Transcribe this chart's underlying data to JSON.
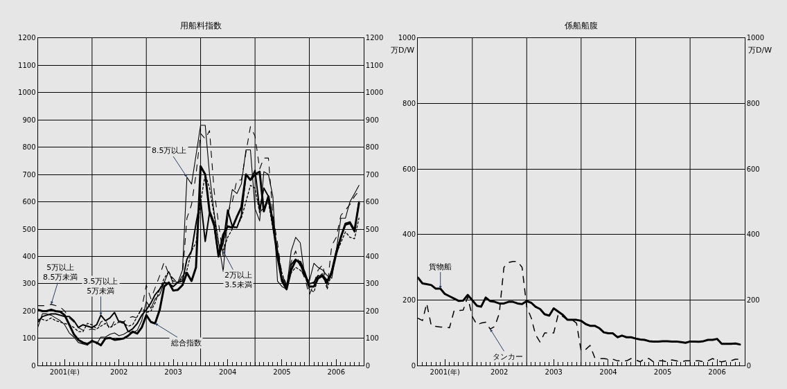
{
  "chart_data": [
    {
      "type": "line",
      "title": "用船料指数",
      "x": [
        "2001-01",
        "2001-02",
        "2001-03",
        "2001-04",
        "2001-05",
        "2001-06",
        "2001-07",
        "2001-08",
        "2001-09",
        "2001-10",
        "2001-11",
        "2001-12",
        "2002-01",
        "2002-02",
        "2002-03",
        "2002-04",
        "2002-05",
        "2002-06",
        "2002-07",
        "2002-08",
        "2002-09",
        "2002-10",
        "2002-11",
        "2002-12",
        "2003-01",
        "2003-02",
        "2003-03",
        "2003-04",
        "2003-05",
        "2003-06",
        "2003-07",
        "2003-08",
        "2003-09",
        "2003-10",
        "2003-11",
        "2003-12",
        "2004-01",
        "2004-02",
        "2004-03",
        "2004-04",
        "2004-05",
        "2004-06",
        "2004-07",
        "2004-08",
        "2004-09",
        "2004-10",
        "2004-11",
        "2004-12",
        "2005-01",
        "2005-02",
        "2005-03",
        "2005-04",
        "2005-05",
        "2005-06",
        "2005-07",
        "2005-08",
        "2005-09",
        "2005-10",
        "2005-11",
        "2005-12",
        "2006-01",
        "2006-02",
        "2006-03",
        "2006-04",
        "2006-05",
        "2006-06",
        "2006-07",
        "2006-08",
        "2006-09",
        "2006-10",
        "2006-11",
        "2006-12"
      ],
      "series": [
        {
          "color": "#000000",
          "values": [
            205,
            200,
            200,
            205,
            200,
            198,
            185,
            150,
            115,
            95,
            85,
            80,
            90,
            85,
            75,
            100,
            102,
            95,
            97,
            100,
            110,
            125,
            118,
            140,
            185,
            160,
            155,
            205,
            290,
            305,
            275,
            278,
            295,
            340,
            310,
            360,
            730,
            700,
            565,
            520,
            400,
            480,
            510,
            505,
            545,
            580,
            700,
            680,
            700,
            710,
            565,
            620,
            520,
            400,
            310,
            280,
            350,
            385,
            380,
            340,
            290,
            290,
            320,
            330,
            310,
            340,
            410,
            470,
            520,
            525,
            495,
            595
          ]
        },
        {
          "color": "#000000",
          "values": [
            140,
            190,
            190,
            185,
            175,
            165,
            150,
            120,
            105,
            85,
            80,
            75,
            95,
            80,
            105,
            105,
            115,
            120,
            110,
            115,
            125,
            120,
            130,
            165,
            235,
            210,
            245,
            260,
            305,
            345,
            300,
            305,
            350,
            690,
            665,
            770,
            880,
            880,
            700,
            560,
            450,
            345,
            540,
            645,
            630,
            665,
            790,
            790,
            575,
            530,
            710,
            700,
            620,
            310,
            290,
            280,
            420,
            470,
            450,
            330,
            310,
            375,
            360,
            350,
            330,
            320,
            420,
            540,
            540,
            600,
            630,
            660
          ]
        },
        {
          "color": "#000000",
          "line_style": "dashed",
          "values": [
            220,
            220,
            220,
            225,
            220,
            215,
            200,
            175,
            160,
            140,
            130,
            130,
            135,
            130,
            160,
            170,
            130,
            165,
            165,
            160,
            175,
            180,
            175,
            210,
            295,
            245,
            285,
            330,
            380,
            335,
            320,
            300,
            330,
            540,
            590,
            700,
            850,
            830,
            860,
            640,
            520,
            400,
            560,
            600,
            680,
            680,
            780,
            875,
            840,
            720,
            760,
            760,
            550,
            450,
            330,
            300,
            380,
            420,
            360,
            320,
            260,
            300,
            350,
            370,
            290,
            440,
            470,
            550,
            570,
            590,
            620,
            640
          ]
        },
        {
          "color": "#000000",
          "values": [
            160,
            180,
            185,
            190,
            190,
            185,
            180,
            180,
            165,
            140,
            150,
            145,
            140,
            150,
            185,
            165,
            175,
            195,
            160,
            160,
            125,
            135,
            155,
            185,
            205,
            230,
            260,
            280,
            305,
            300,
            290,
            305,
            310,
            390,
            420,
            520,
            610,
            455,
            560,
            510,
            400,
            450,
            570,
            510,
            505,
            550,
            700,
            680,
            715,
            570,
            650,
            620,
            530,
            420,
            320,
            290,
            370,
            390,
            370,
            330,
            300,
            305,
            330,
            325,
            300,
            350,
            420,
            470,
            515,
            520,
            490,
            600
          ]
        },
        {
          "color": "#000000",
          "line_style": "dotted",
          "values": [
            170,
            170,
            165,
            175,
            165,
            160,
            155,
            150,
            140,
            125,
            125,
            155,
            150,
            135,
            145,
            155,
            140,
            150,
            160,
            155,
            145,
            150,
            180,
            210,
            195,
            200,
            230,
            280,
            320,
            345,
            310,
            305,
            320,
            350,
            420,
            450,
            600,
            700,
            650,
            550,
            450,
            420,
            470,
            500,
            510,
            540,
            600,
            660,
            650,
            560,
            580,
            600,
            500,
            420,
            340,
            290,
            340,
            360,
            350,
            330,
            280,
            270,
            320,
            340,
            280,
            340,
            410,
            450,
            490,
            470,
            465,
            540
          ]
        }
      ],
      "xlim": [
        "2001-01",
        "2007-01"
      ],
      "xticks": [
        {
          "value": "2001-07",
          "label": "2001(年)"
        },
        {
          "value": "2002-01",
          "label": null
        },
        {
          "value": "2002-07",
          "label": "2002"
        },
        {
          "value": "2003-01",
          "label": null
        },
        {
          "value": "2003-07",
          "label": "2003"
        },
        {
          "value": "2004-01",
          "label": null
        },
        {
          "value": "2004-07",
          "label": "2004"
        },
        {
          "value": "2005-01",
          "label": null
        },
        {
          "value": "2005-07",
          "label": "2005"
        },
        {
          "value": "2006-01",
          "label": null
        },
        {
          "value": "2006-07",
          "label": "2006"
        }
      ],
      "ylim": [
        0,
        1200
      ],
      "yticks": [
        0,
        100,
        200,
        300,
        400,
        500,
        600,
        700,
        800,
        900,
        1000,
        1100,
        1200
      ],
      "y2lim": [
        0,
        1200
      ],
      "y2ticks": [
        0,
        100,
        200,
        300,
        400,
        500,
        600,
        700,
        800,
        900,
        1000,
        1100,
        1200
      ],
      "grid": true,
      "annotations": [
        {
          "text": "5万以上\n8.5万未満",
          "x": "2001-04",
          "y": 225
        },
        {
          "text": "3.5万以上\n5万未満",
          "x": "2002-03",
          "y": 185
        },
        {
          "text": "8.5万以上",
          "x": "2003-10",
          "y": 690
        },
        {
          "text": "総合指数",
          "x": "2003-03",
          "y": 155
        },
        {
          "text": "2万以上\n3.5未満",
          "x": "2004-06",
          "y": 420
        }
      ]
    },
    {
      "type": "line",
      "title": "係船船腹",
      "ylabel": "万D/W",
      "y2label": "万D/W",
      "x": [
        "2001-01",
        "2001-02",
        "2001-03",
        "2001-04",
        "2001-05",
        "2001-06",
        "2001-07",
        "2001-08",
        "2001-09",
        "2001-10",
        "2001-11",
        "2001-12",
        "2002-01",
        "2002-02",
        "2002-03",
        "2002-04",
        "2002-05",
        "2002-06",
        "2002-07",
        "2002-08",
        "2002-09",
        "2002-10",
        "2002-11",
        "2002-12",
        "2003-01",
        "2003-02",
        "2003-03",
        "2003-04",
        "2003-05",
        "2003-06",
        "2003-07",
        "2003-08",
        "2003-09",
        "2003-10",
        "2003-11",
        "2003-12",
        "2004-01",
        "2004-02",
        "2004-03",
        "2004-04",
        "2004-05",
        "2004-06",
        "2004-07",
        "2004-08",
        "2004-09",
        "2004-10",
        "2004-11",
        "2004-12",
        "2005-01",
        "2005-02",
        "2005-03",
        "2005-04",
        "2005-05",
        "2005-06",
        "2005-07",
        "2005-08",
        "2005-09",
        "2005-10",
        "2005-11",
        "2005-12",
        "2006-01",
        "2006-02",
        "2006-03",
        "2006-04",
        "2006-05",
        "2006-06",
        "2006-07",
        "2006-08",
        "2006-09",
        "2006-10",
        "2006-11",
        "2006-12"
      ],
      "series": [
        {
          "color": "#000000",
          "values": [
            269,
            251,
            249,
            246,
            235,
            235,
            219,
            212,
            205,
            198,
            199,
            216,
            200,
            183,
            180,
            208,
            197,
            195,
            190,
            190,
            195,
            195,
            190,
            188,
            197,
            192,
            180,
            173,
            157,
            153,
            175,
            165,
            155,
            140,
            140,
            140,
            137,
            127,
            122,
            122,
            115,
            102,
            99,
            99,
            87,
            92,
            87,
            87,
            83,
            80,
            79,
            75,
            74,
            74,
            75,
            75,
            74,
            74,
            72,
            70,
            74,
            74,
            73,
            75,
            79,
            79,
            82,
            67,
            67,
            67,
            68,
            65
          ]
        },
        {
          "color": "#000000",
          "line_style": "dashed",
          "values": [
            145,
            138,
            190,
            122,
            120,
            118,
            118,
            116,
            168,
            168,
            170,
            210,
            150,
            125,
            130,
            133,
            112,
            120,
            160,
            300,
            315,
            318,
            318,
            300,
            180,
            145,
            95,
            72,
            100,
            100,
            100,
            158,
            150,
            140,
            140,
            130,
            45,
            50,
            62,
            25,
            22,
            22,
            20,
            20,
            15,
            15,
            15,
            22,
            18,
            12,
            22,
            22,
            12,
            15,
            15,
            12,
            18,
            15,
            12,
            15,
            15,
            15,
            15,
            12,
            15,
            22,
            15,
            12,
            15,
            15,
            20,
            20
          ]
        }
      ],
      "xlim": [
        "2001-01",
        "2007-01"
      ],
      "xticks": [
        {
          "value": "2001-07",
          "label": "2001(年)"
        },
        {
          "value": "2002-01",
          "label": null
        },
        {
          "value": "2002-07",
          "label": "2002"
        },
        {
          "value": "2003-01",
          "label": null
        },
        {
          "value": "2003-07",
          "label": "2003"
        },
        {
          "value": "2004-01",
          "label": null
        },
        {
          "value": "2004-07",
          "label": "2004"
        },
        {
          "value": "2005-01",
          "label": null
        },
        {
          "value": "2005-07",
          "label": "2005"
        },
        {
          "value": "2006-01",
          "label": null
        },
        {
          "value": "2006-07",
          "label": "2006"
        }
      ],
      "ylim": [
        0,
        1000
      ],
      "yticks": [
        0,
        200,
        400,
        600,
        800,
        1000
      ],
      "y2lim": [
        0,
        1000
      ],
      "y2ticks": [
        0,
        200,
        400,
        600,
        800,
        1000
      ],
      "grid": true,
      "annotations": [
        {
          "text": "貨物船",
          "x": "2001-06",
          "y": 235
        },
        {
          "text": "タンカー",
          "x": "2002-05",
          "y": 112
        }
      ]
    }
  ]
}
